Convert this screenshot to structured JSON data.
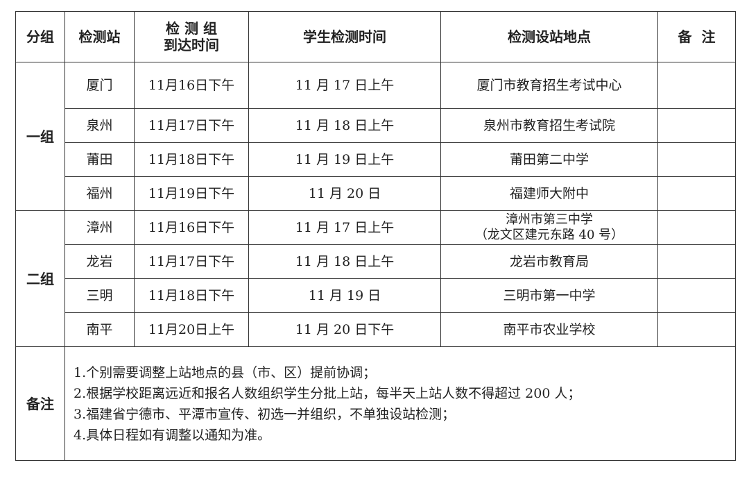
{
  "headers": [
    "分组",
    "检测站",
    "检 测 组\n到达时间",
    "学生检测时间",
    "检测设站地点",
    "备  注"
  ],
  "groups": [
    {
      "name": "一组",
      "rows": [
        {
          "station": "厦门",
          "arrival": "11月16日下午",
          "test_time": "11 月 17 日上午",
          "location": "厦门市教育招生考试中心",
          "remark": ""
        },
        {
          "station": "泉州",
          "arrival": "11月17日下午",
          "test_time": "11 月 18 日上午",
          "location": "泉州市教育招生考试院",
          "remark": ""
        },
        {
          "station": "莆田",
          "arrival": "11月18日下午",
          "test_time": "11 月 19 日上午",
          "location": "莆田第二中学",
          "remark": ""
        },
        {
          "station": "福州",
          "arrival": "11月19日下午",
          "test_time": "11 月 20 日",
          "location": "福建师大附中",
          "remark": ""
        }
      ]
    },
    {
      "name": "二组",
      "rows": [
        {
          "station": "漳州",
          "arrival": "11月16日下午",
          "test_time": "11 月 17 日上午",
          "location": "漳州市第三中学",
          "location_sub": "（龙文区建元东路 40 号）",
          "remark": ""
        },
        {
          "station": "龙岩",
          "arrival": "11月17日下午",
          "test_time": "11 月 18 日上午",
          "location": "龙岩市教育局",
          "remark": ""
        },
        {
          "station": "三明",
          "arrival": "11月18日下午",
          "test_time": "11 月 19 日",
          "location": "三明市第一中学",
          "remark": ""
        },
        {
          "station": "南平",
          "arrival": "11月20日上午",
          "test_time": "11 月 20 日下午",
          "location": "南平市农业学校",
          "remark": ""
        }
      ]
    }
  ],
  "notes": {
    "label": "备注",
    "items": [
      "1.个别需要调整上站地点的县（市、区）提前协调；",
      "2.根据学校距离远近和报名人数组织学生分批上站，每半天上站人数不得超过 200 人；",
      "3.福建省宁德市、平潭市宣传、初选一并组织，不单独设站检测；",
      "4.具体日程如有调整以通知为准。"
    ]
  }
}
